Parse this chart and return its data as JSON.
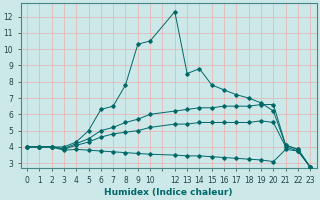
{
  "xlabel": "Humidex (Indice chaleur)",
  "bg_color": "#cce8e8",
  "grid_color": "#e8b0b0",
  "line_color": "#006868",
  "xlim": [
    -0.5,
    23.5
  ],
  "ylim": [
    2.7,
    12.8
  ],
  "xtick_labels": [
    "0",
    "1",
    "2",
    "3",
    "4",
    "5",
    "6",
    "7",
    "8",
    "9",
    "10",
    "",
    "12",
    "13",
    "14",
    "15",
    "16",
    "17",
    "18",
    "19",
    "20",
    "21",
    "22",
    "23"
  ],
  "xtick_positions": [
    0,
    1,
    2,
    3,
    4,
    5,
    6,
    7,
    8,
    9,
    10,
    11,
    12,
    13,
    14,
    15,
    16,
    17,
    18,
    19,
    20,
    21,
    22,
    23
  ],
  "ytick_positions": [
    3,
    4,
    5,
    6,
    7,
    8,
    9,
    10,
    11,
    12
  ],
  "ytick_labels": [
    "3",
    "4",
    "5",
    "6",
    "7",
    "8",
    "9",
    "10",
    "11",
    "12"
  ],
  "lines": [
    {
      "x": [
        0,
        1,
        2,
        3,
        4,
        5,
        6,
        7,
        8,
        9,
        10,
        12,
        13,
        14,
        15,
        16,
        17,
        18,
        19,
        20,
        21,
        22,
        23
      ],
      "y": [
        4,
        4,
        4,
        4,
        4.3,
        5.0,
        6.3,
        6.5,
        7.8,
        10.3,
        10.5,
        12.3,
        8.5,
        8.8,
        7.8,
        7.5,
        7.2,
        7.0,
        6.7,
        6.2,
        4.1,
        3.85,
        2.75
      ]
    },
    {
      "x": [
        0,
        1,
        2,
        3,
        4,
        5,
        6,
        7,
        8,
        9,
        10,
        12,
        13,
        14,
        15,
        16,
        17,
        18,
        19,
        20,
        21,
        22,
        23
      ],
      "y": [
        4,
        4,
        4,
        3.9,
        4.2,
        4.5,
        5.0,
        5.2,
        5.5,
        5.7,
        6.0,
        6.2,
        6.3,
        6.4,
        6.4,
        6.5,
        6.5,
        6.5,
        6.6,
        6.6,
        4.1,
        3.85,
        2.75
      ]
    },
    {
      "x": [
        0,
        1,
        2,
        3,
        4,
        5,
        6,
        7,
        8,
        9,
        10,
        12,
        13,
        14,
        15,
        16,
        17,
        18,
        19,
        20,
        21,
        22,
        23
      ],
      "y": [
        4,
        4,
        4,
        3.85,
        4.1,
        4.3,
        4.6,
        4.8,
        4.9,
        5.0,
        5.2,
        5.4,
        5.4,
        5.5,
        5.5,
        5.5,
        5.5,
        5.5,
        5.6,
        5.5,
        4.0,
        3.75,
        2.75
      ]
    },
    {
      "x": [
        0,
        1,
        2,
        3,
        4,
        5,
        6,
        7,
        8,
        9,
        10,
        12,
        13,
        14,
        15,
        16,
        17,
        18,
        19,
        20,
        21,
        22,
        23
      ],
      "y": [
        4,
        4,
        4,
        3.8,
        3.85,
        3.8,
        3.75,
        3.7,
        3.65,
        3.6,
        3.55,
        3.5,
        3.45,
        3.45,
        3.4,
        3.35,
        3.3,
        3.25,
        3.2,
        3.1,
        3.85,
        3.75,
        2.75
      ]
    }
  ]
}
